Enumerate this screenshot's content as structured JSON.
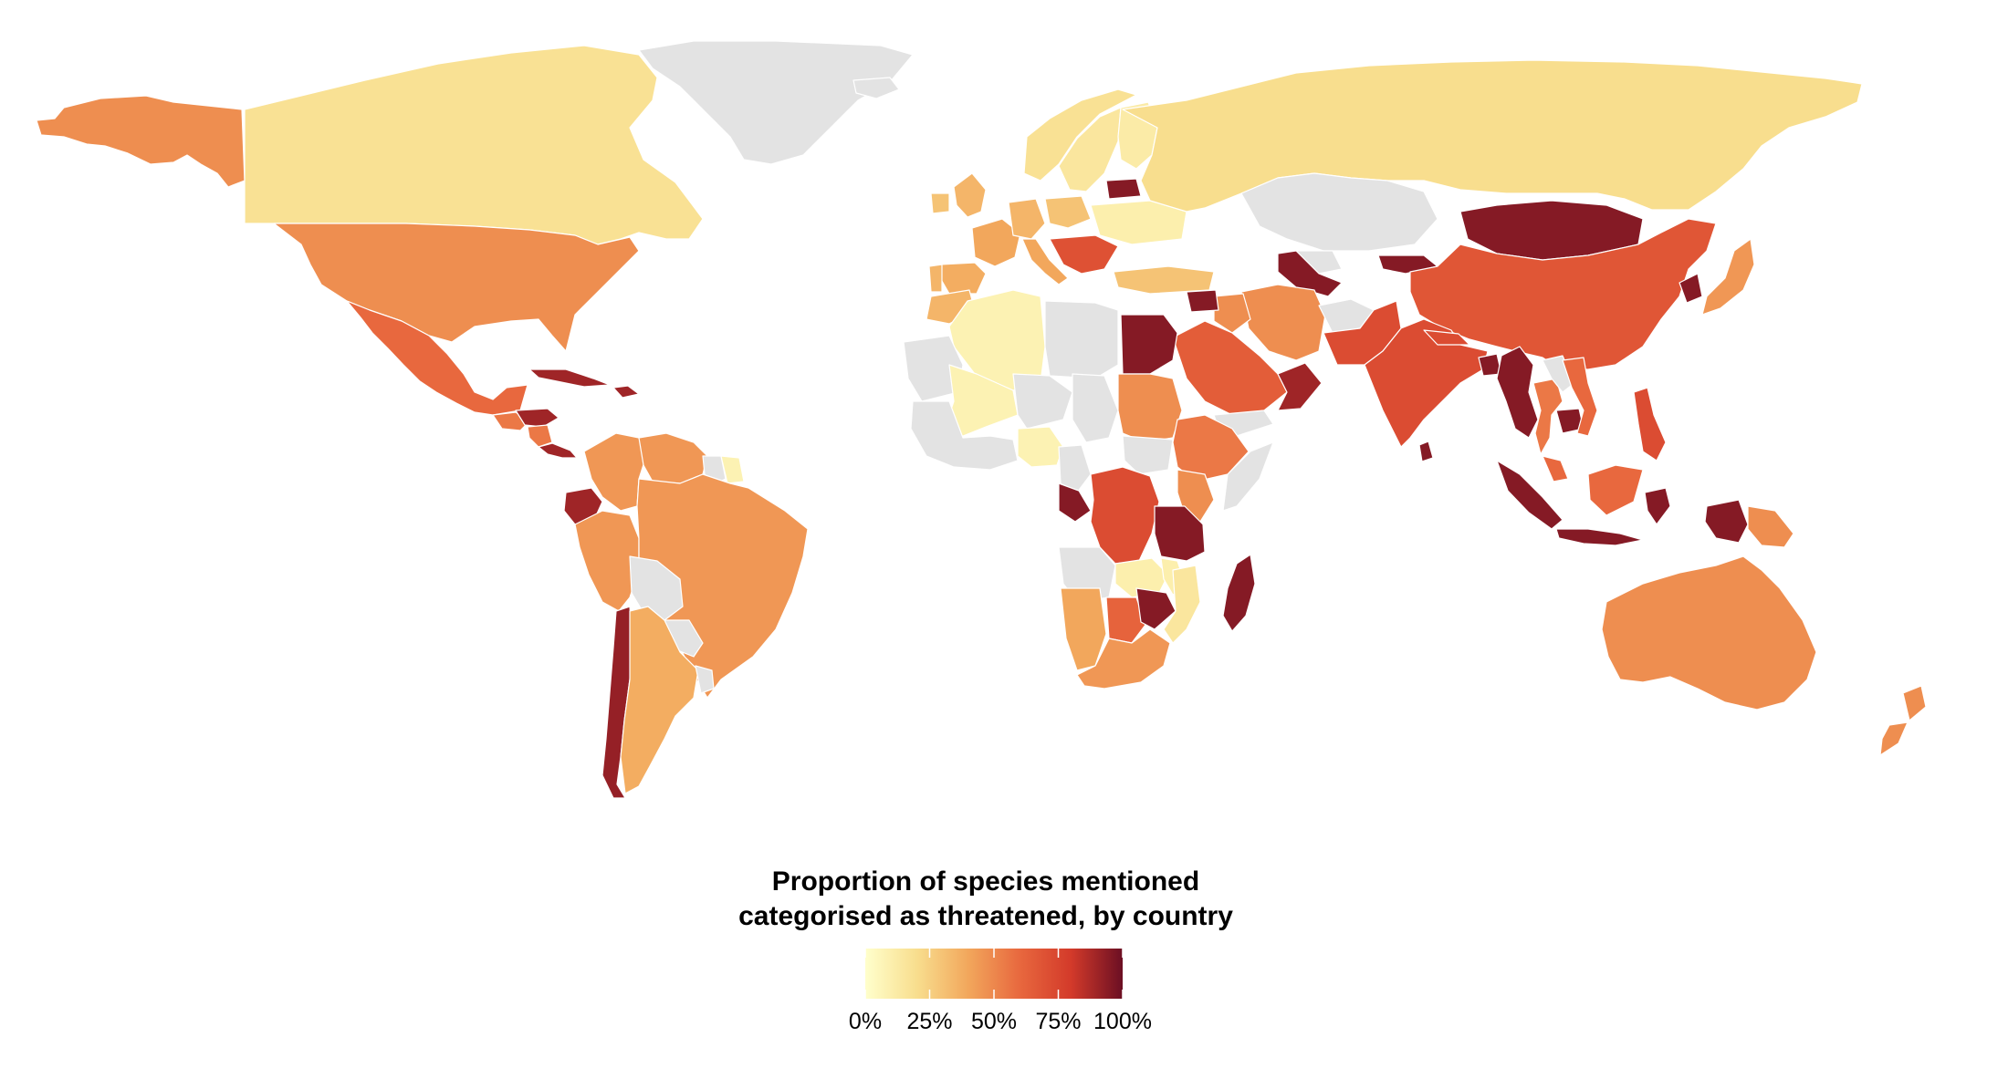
{
  "legend": {
    "title_line1": "Proportion of species mentioned",
    "title_line2": "categorised as threatened, by country",
    "ticks": [
      {
        "value": 0,
        "label": "0%"
      },
      {
        "value": 25,
        "label": "25%"
      },
      {
        "value": 50,
        "label": "50%"
      },
      {
        "value": 75,
        "label": "75%"
      },
      {
        "value": 100,
        "label": "100%"
      }
    ],
    "range": [
      0,
      100
    ]
  },
  "colors": {
    "scale": [
      "#FFFFCC",
      "#F8DE8E",
      "#F2A75C",
      "#E8683E",
      "#D33A2A",
      "#6B0F23"
    ],
    "no_data": "#E3E3E3",
    "border": "#FFFFFF"
  },
  "regions": [
    {
      "name": "Alaska (USA)",
      "value": 48
    },
    {
      "name": "Canada",
      "value": 18
    },
    {
      "name": "USA",
      "value": 48
    },
    {
      "name": "Greenland",
      "value": null
    },
    {
      "name": "Mexico",
      "value": 60
    },
    {
      "name": "Guatemala",
      "value": 55
    },
    {
      "name": "Honduras",
      "value": 90
    },
    {
      "name": "Nicaragua",
      "value": 55
    },
    {
      "name": "Costa Rica",
      "value": 90
    },
    {
      "name": "Cuba",
      "value": 90
    },
    {
      "name": "Haiti",
      "value": 90
    },
    {
      "name": "Colombia",
      "value": 45
    },
    {
      "name": "Venezuela",
      "value": 45
    },
    {
      "name": "Guyana",
      "value": null
    },
    {
      "name": "Suriname",
      "value": 8
    },
    {
      "name": "Ecuador",
      "value": 90
    },
    {
      "name": "Peru",
      "value": 45
    },
    {
      "name": "Brazil",
      "value": 45
    },
    {
      "name": "Bolivia",
      "value": null
    },
    {
      "name": "Paraguay",
      "value": null
    },
    {
      "name": "Chile",
      "value": 92
    },
    {
      "name": "Argentina",
      "value": 38
    },
    {
      "name": "Uruguay",
      "value": null
    },
    {
      "name": "Iceland",
      "value": null
    },
    {
      "name": "Norway",
      "value": 18
    },
    {
      "name": "Sweden",
      "value": 15
    },
    {
      "name": "Finland",
      "value": 12
    },
    {
      "name": "UK",
      "value": 35
    },
    {
      "name": "Ireland",
      "value": 30
    },
    {
      "name": "France",
      "value": 40
    },
    {
      "name": "Spain",
      "value": 38
    },
    {
      "name": "Portugal",
      "value": 35
    },
    {
      "name": "Germany",
      "value": 35
    },
    {
      "name": "Poland",
      "value": 30
    },
    {
      "name": "Italy",
      "value": 40
    },
    {
      "name": "Balkans",
      "value": 70
    },
    {
      "name": "Ukraine",
      "value": 10
    },
    {
      "name": "Belarus",
      "value": 95
    },
    {
      "name": "Turkey",
      "value": 30
    },
    {
      "name": "Russia",
      "value": 20
    },
    {
      "name": "Kazakhstan",
      "value": null
    },
    {
      "name": "Uzbekistan",
      "value": null
    },
    {
      "name": "Turkmenistan",
      "value": 95
    },
    {
      "name": "Kyrgyzstan",
      "value": 95
    },
    {
      "name": "Mongolia",
      "value": 95
    },
    {
      "name": "China",
      "value": 68
    },
    {
      "name": "North Korea",
      "value": 95
    },
    {
      "name": "Japan",
      "value": 45
    },
    {
      "name": "Iran",
      "value": 48
    },
    {
      "name": "Iraq",
      "value": 48
    },
    {
      "name": "Syria",
      "value": 95
    },
    {
      "name": "Saudi Arabia",
      "value": 65
    },
    {
      "name": "Yemen",
      "value": null
    },
    {
      "name": "Oman",
      "value": 90
    },
    {
      "name": "Afghanistan",
      "value": null
    },
    {
      "name": "Pakistan",
      "value": 72
    },
    {
      "name": "India",
      "value": 72
    },
    {
      "name": "Nepal",
      "value": 72
    },
    {
      "name": "Bangladesh",
      "value": 95
    },
    {
      "name": "Sri Lanka",
      "value": 95
    },
    {
      "name": "Myanmar",
      "value": 95
    },
    {
      "name": "Thailand",
      "value": 55
    },
    {
      "name": "Laos",
      "value": null
    },
    {
      "name": "Cambodia",
      "value": 95
    },
    {
      "name": "Vietnam",
      "value": 60
    },
    {
      "name": "Philippines",
      "value": 72
    },
    {
      "name": "Malaysia",
      "value": 60
    },
    {
      "name": "Borneo",
      "value": 60
    },
    {
      "name": "Sumatra",
      "value": 95
    },
    {
      "name": "Java",
      "value": 95
    },
    {
      "name": "Sulawesi",
      "value": 95
    },
    {
      "name": "New Guinea (Indonesia)",
      "value": 95
    },
    {
      "name": "Papua New Guinea",
      "value": 48
    },
    {
      "name": "Australia",
      "value": 48
    },
    {
      "name": "New Zealand",
      "value": 48
    },
    {
      "name": "Morocco",
      "value": 35
    },
    {
      "name": "Algeria",
      "value": 8
    },
    {
      "name": "Libya",
      "value": null
    },
    {
      "name": "Egypt",
      "value": 95
    },
    {
      "name": "Mauritania",
      "value": null
    },
    {
      "name": "Mali",
      "value": 8
    },
    {
      "name": "Niger",
      "value": null
    },
    {
      "name": "Chad",
      "value": null
    },
    {
      "name": "Sudan",
      "value": 48
    },
    {
      "name": "South Sudan",
      "value": null
    },
    {
      "name": "Ethiopia",
      "value": 55
    },
    {
      "name": "Somalia",
      "value": null
    },
    {
      "name": "West Africa",
      "value": null
    },
    {
      "name": "Nigeria",
      "value": 8
    },
    {
      "name": "Cameroon",
      "value": null
    },
    {
      "name": "Gabon",
      "value": 95
    },
    {
      "name": "DR Congo",
      "value": 72
    },
    {
      "name": "Kenya",
      "value": 48
    },
    {
      "name": "Tanzania",
      "value": 95
    },
    {
      "name": "Angola",
      "value": null
    },
    {
      "name": "Zambia",
      "value": 10
    },
    {
      "name": "Malawi",
      "value": 10
    },
    {
      "name": "Namibia",
      "value": 40
    },
    {
      "name": "Botswana",
      "value": 62
    },
    {
      "name": "Zimbabwe",
      "value": 95
    },
    {
      "name": "Mozambique",
      "value": 15
    },
    {
      "name": "South Africa",
      "value": 45
    },
    {
      "name": "Madagascar",
      "value": 95
    }
  ]
}
